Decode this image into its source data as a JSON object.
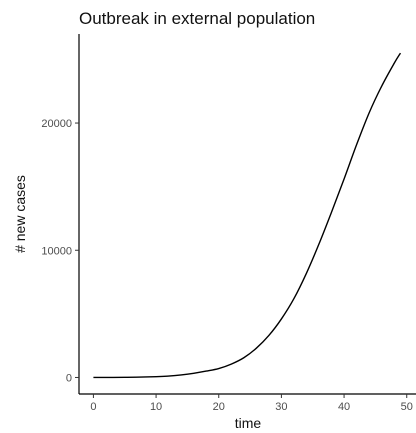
{
  "chart_data": {
    "type": "line",
    "title": "Outbreak in external population",
    "xlabel": "time",
    "ylabel": "# new cases",
    "xlim": [
      -2.3,
      51
    ],
    "ylim": [
      -1300,
      27000
    ],
    "xticks": [
      0,
      10,
      20,
      30,
      40,
      50
    ],
    "yticks": [
      0,
      10000,
      20000
    ],
    "grid": false,
    "legend": "none",
    "line_color": "#000000",
    "series": [
      {
        "x": [
          0,
          5,
          10,
          12,
          14,
          16,
          18,
          20,
          22,
          24,
          26,
          28,
          30,
          32,
          34,
          36,
          38,
          40,
          42,
          44,
          46,
          48,
          49
        ],
        "y": [
          0,
          10,
          60,
          110,
          200,
          330,
          500,
          700,
          1050,
          1550,
          2300,
          3300,
          4600,
          6200,
          8200,
          10500,
          13000,
          15600,
          18300,
          20800,
          22900,
          24700,
          25500
        ]
      }
    ]
  }
}
